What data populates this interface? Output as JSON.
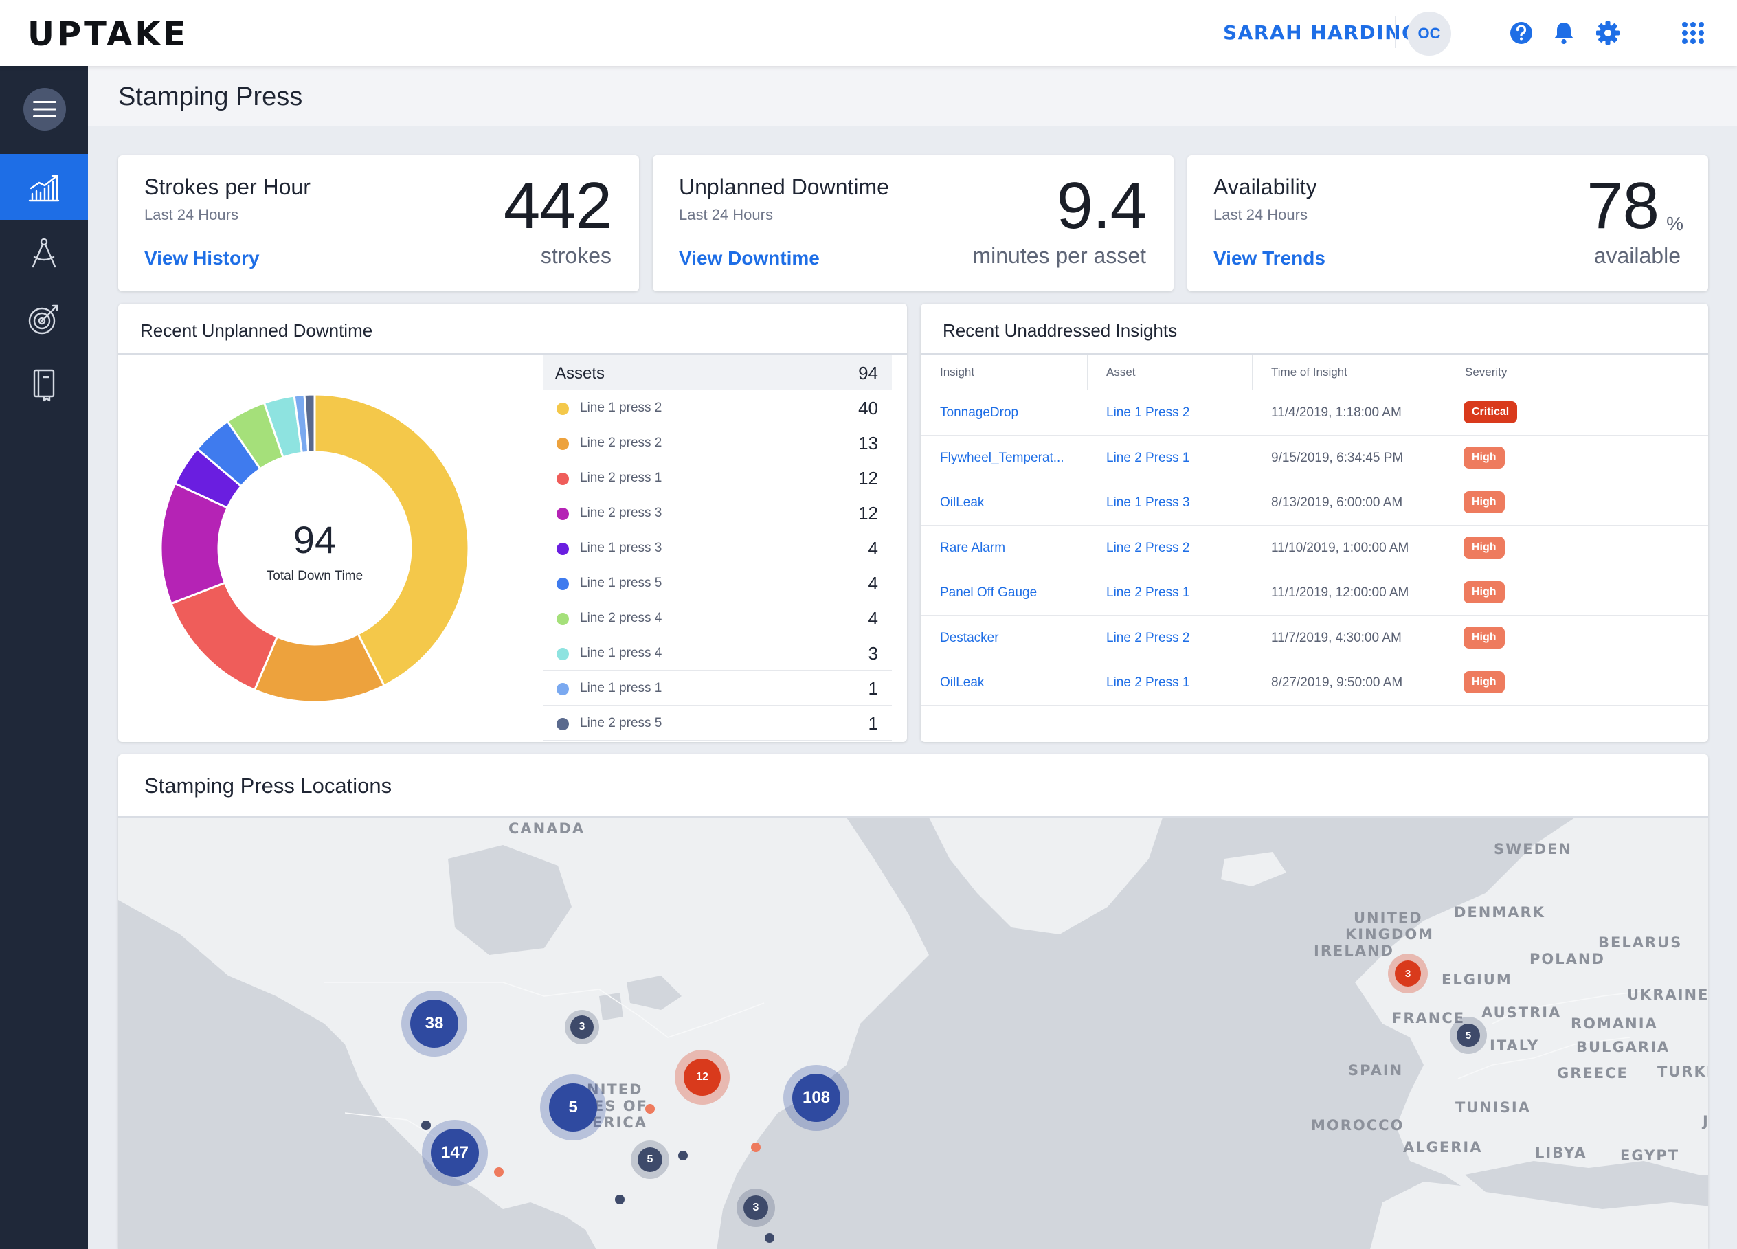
{
  "app": {
    "logo": "UPTAKE"
  },
  "header": {
    "user_name": "SARAH HARDING",
    "avatar_initials": "OC"
  },
  "page": {
    "title": "Stamping Press"
  },
  "kpis": {
    "strokes": {
      "title": "Strokes per Hour",
      "subtitle": "Last 24 Hours",
      "link": "View History",
      "value": "442",
      "unit": "strokes"
    },
    "downtime": {
      "title": "Unplanned Downtime",
      "subtitle": "Last 24 Hours",
      "link": "View Downtime",
      "value": "9.4",
      "unit": "minutes per asset"
    },
    "availability": {
      "title": "Availability",
      "subtitle": "Last 24 Hours",
      "link": "View Trends",
      "value": "78",
      "percent": "%",
      "unit": "available"
    }
  },
  "downtime_panel": {
    "title": "Recent Unplanned Downtime",
    "center_value": "94",
    "center_label": "Total Down Time",
    "legend_header": "Assets",
    "legend_total": "94"
  },
  "chart_data": {
    "type": "pie",
    "total": 94,
    "categories": [
      "Line 1 press 2",
      "Line 2 press 2",
      "Line 2 press 1",
      "Line 2 press 3",
      "Line 1 press 3",
      "Line 1 press 5",
      "Line 2 press 4",
      "Line 1 press 4",
      "Line 1 press 1",
      "Line 2 press 5"
    ],
    "values": [
      40,
      13,
      12,
      12,
      4,
      4,
      4,
      3,
      1,
      1
    ],
    "colors": [
      "#f4c84a",
      "#eda23d",
      "#ef5d5a",
      "#b523b5",
      "#6a1ee0",
      "#3f7bee",
      "#a5e07a",
      "#8ee3e0",
      "#7aa9f0",
      "#5a6a8e"
    ]
  },
  "insights_panel": {
    "title": "Recent Unaddressed Insights",
    "columns": [
      "Insight",
      "Asset",
      "Time of Insight",
      "Severity"
    ],
    "rows": [
      {
        "insight": "TonnageDrop",
        "asset": "Line 1 Press 2",
        "time": "11/4/2019, 1:18:00 AM",
        "severity": "Critical"
      },
      {
        "insight": "Flywheel_Temperat...",
        "asset": "Line 2 Press 1",
        "time": "9/15/2019, 6:34:45 PM",
        "severity": "High"
      },
      {
        "insight": "OilLeak",
        "asset": "Line 1 Press 3",
        "time": "8/13/2019, 6:00:00 AM",
        "severity": "High"
      },
      {
        "insight": "Rare Alarm",
        "asset": "Line 2 Press 2",
        "time": "11/10/2019, 1:00:00 AM",
        "severity": "High"
      },
      {
        "insight": "Panel Off Gauge",
        "asset": "Line 2 Press 1",
        "time": "11/1/2019, 12:00:00 AM",
        "severity": "High"
      },
      {
        "insight": "Destacker",
        "asset": "Line 2 Press 2",
        "time": "11/7/2019, 4:30:00 AM",
        "severity": "High"
      },
      {
        "insight": "OilLeak",
        "asset": "Line 2 Press 1",
        "time": "8/27/2019, 9:50:00 AM",
        "severity": "High"
      }
    ]
  },
  "map_panel": {
    "title": "Stamping Press Locations",
    "labels": {
      "canada": "CANADA",
      "sweden": "SWEDEN",
      "united_kingdom_1": "UNITED",
      "united_kingdom_2": "KINGDOM",
      "ireland": "IRELAND",
      "denmark": "DENMARK",
      "belarus": "BELARUS",
      "poland": "POLAND",
      "belgium": "ELGIUM",
      "ukraine": "UKRAINE",
      "france": "FRANCE",
      "austria": "AUSTRIA",
      "romania": "ROMANIA",
      "italy": "ITALY",
      "bulgaria": "BULGARIA",
      "spain": "SPAIN",
      "greece": "GREECE",
      "turkey": "TURKE",
      "tunisia": "TUNISIA",
      "morocco": "MOROCCO",
      "algeria": "ALGERIA",
      "libya": "LIBYA",
      "egypt": "EGYPT",
      "jordan": "JOR",
      "usa_1": "NITED",
      "usa_2": "ES OF",
      "usa_3": "ERICA"
    },
    "clusters": [
      "38",
      "3",
      "12",
      "5",
      "108",
      "147",
      "5",
      "3",
      "3",
      "5"
    ]
  },
  "colors": {
    "accent": "#1e6ee6",
    "sidebar": "#1f2839",
    "critical": "#d93a1c",
    "high": "#ee7b5e",
    "cluster": "#2f4aa0"
  }
}
